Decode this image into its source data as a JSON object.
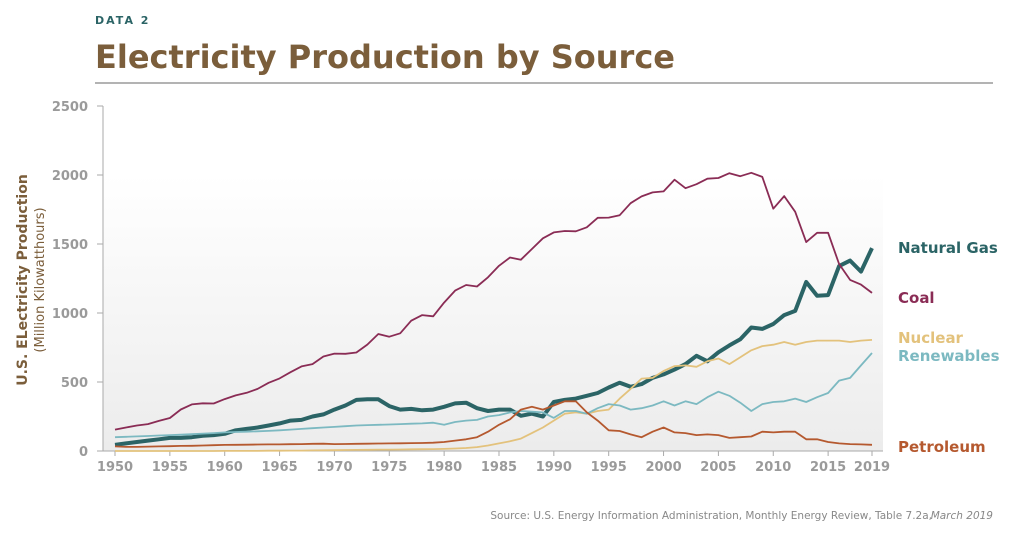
{
  "kicker": "DATA 2",
  "chart_data": {
    "type": "line",
    "title": "Electricity Production by Source",
    "y_label": "U.S. ELectricity Production",
    "y_sublabel": "(Million Kilowatthours)",
    "source": "Source: U.S. Energy Information Administration, Monthly Energy Review, Table 7.2a,",
    "source_date": "March 2019",
    "x": [
      1950,
      1951,
      1952,
      1953,
      1954,
      1955,
      1956,
      1957,
      1958,
      1959,
      1960,
      1961,
      1962,
      1963,
      1964,
      1965,
      1966,
      1967,
      1968,
      1969,
      1970,
      1971,
      1972,
      1973,
      1974,
      1975,
      1976,
      1977,
      1978,
      1979,
      1980,
      1981,
      1982,
      1983,
      1984,
      1985,
      1986,
      1987,
      1988,
      1989,
      1990,
      1991,
      1992,
      1993,
      1994,
      1995,
      1996,
      1997,
      1998,
      1999,
      2000,
      2001,
      2002,
      2003,
      2004,
      2005,
      2006,
      2007,
      2008,
      2009,
      2010,
      2011,
      2012,
      2013,
      2014,
      2015,
      2016,
      2017,
      2018,
      2019
    ],
    "xlim": [
      1950,
      2019
    ],
    "xticks": [
      1950,
      1955,
      1960,
      1965,
      1970,
      1975,
      1980,
      1985,
      1990,
      1995,
      2000,
      2005,
      2010,
      2015,
      2019
    ],
    "ylim": [
      0,
      2500
    ],
    "yticks": [
      0,
      500,
      1000,
      1500,
      2000,
      2500
    ],
    "series": [
      {
        "name": "Natural Gas",
        "color": "#2b6466",
        "values": [
          45,
          55,
          65,
          75,
          85,
          95,
          95,
          100,
          110,
          115,
          125,
          150,
          160,
          170,
          185,
          200,
          220,
          225,
          250,
          265,
          300,
          330,
          370,
          375,
          375,
          325,
          300,
          305,
          295,
          300,
          320,
          345,
          350,
          310,
          290,
          300,
          300,
          255,
          270,
          250,
          355,
          370,
          380,
          400,
          420,
          460,
          495,
          465,
          485,
          530,
          555,
          590,
          630,
          690,
          650,
          715,
          765,
          810,
          895,
          885,
          920,
          985,
          1015,
          1225,
          1125,
          1130,
          1340,
          1380,
          1300,
          1470
        ]
      },
      {
        "name": "Coal",
        "color": "#8a2c55",
        "values": [
          155,
          170,
          185,
          195,
          218,
          239,
          301,
          338,
          346,
          344,
          376,
          403,
          422,
          450,
          494,
          526,
          571,
          613,
          630,
          685,
          706,
          704,
          714,
          771,
          848,
          828,
          853,
          944,
          985,
          976,
          1075,
          1162,
          1203,
          1192,
          1259,
          1342,
          1402,
          1386,
          1464,
          1541,
          1584,
          1594,
          1592,
          1621,
          1690,
          1691,
          1709,
          1796,
          1845,
          1874,
          1881,
          1966,
          1904,
          1933,
          1973,
          1978,
          2013,
          1991,
          2016,
          1986,
          1756,
          1847,
          1733,
          1514,
          1581,
          1581,
          1355,
          1240,
          1206,
          1146
        ]
      },
      {
        "name": "Nuclear",
        "color": "#e3c27c",
        "values": [
          0,
          0,
          0,
          0,
          0,
          0,
          0,
          0,
          0,
          0,
          1,
          1,
          1,
          1,
          2,
          2,
          3,
          3,
          4,
          5,
          6,
          7,
          8,
          9,
          10,
          10,
          11,
          12,
          13,
          14,
          15,
          18,
          22,
          28,
          40,
          55,
          70,
          90,
          130,
          170,
          220,
          270,
          280,
          270,
          290,
          300,
          380,
          450,
          525,
          530,
          580,
          615,
          620,
          610,
          650,
          670,
          630,
          680,
          730,
          760,
          770,
          790,
          770,
          790,
          800,
          800,
          800,
          790,
          800,
          805
        ]
      },
      {
        "name": "Renewables",
        "color": "#7cb9c1",
        "values": [
          100,
          103,
          106,
          109,
          112,
          115,
          118,
          122,
          126,
          130,
          135,
          138,
          140,
          143,
          146,
          150,
          155,
          160,
          165,
          170,
          175,
          180,
          185,
          188,
          190,
          192,
          195,
          198,
          200,
          205,
          190,
          210,
          220,
          225,
          250,
          260,
          280,
          290,
          285,
          280,
          240,
          290,
          290,
          270,
          310,
          340,
          330,
          300,
          310,
          330,
          360,
          330,
          360,
          340,
          390,
          430,
          400,
          350,
          290,
          340,
          355,
          360,
          380,
          355,
          390,
          420,
          510,
          530,
          620,
          710
        ]
      },
      {
        "name": "Petroleum",
        "color": "#b5592f",
        "values": [
          33,
          30,
          30,
          32,
          33,
          35,
          37,
          38,
          40,
          42,
          44,
          45,
          46,
          47,
          48,
          48,
          49,
          50,
          52,
          53,
          50,
          51,
          52,
          53,
          54,
          55,
          56,
          57,
          58,
          60,
          65,
          75,
          85,
          100,
          140,
          190,
          230,
          300,
          320,
          300,
          330,
          360,
          360,
          280,
          220,
          150,
          145,
          120,
          100,
          140,
          170,
          135,
          130,
          115,
          120,
          115,
          95,
          100,
          105,
          140,
          135,
          140,
          140,
          85,
          85,
          65,
          55,
          50,
          48,
          45
        ]
      }
    ]
  }
}
